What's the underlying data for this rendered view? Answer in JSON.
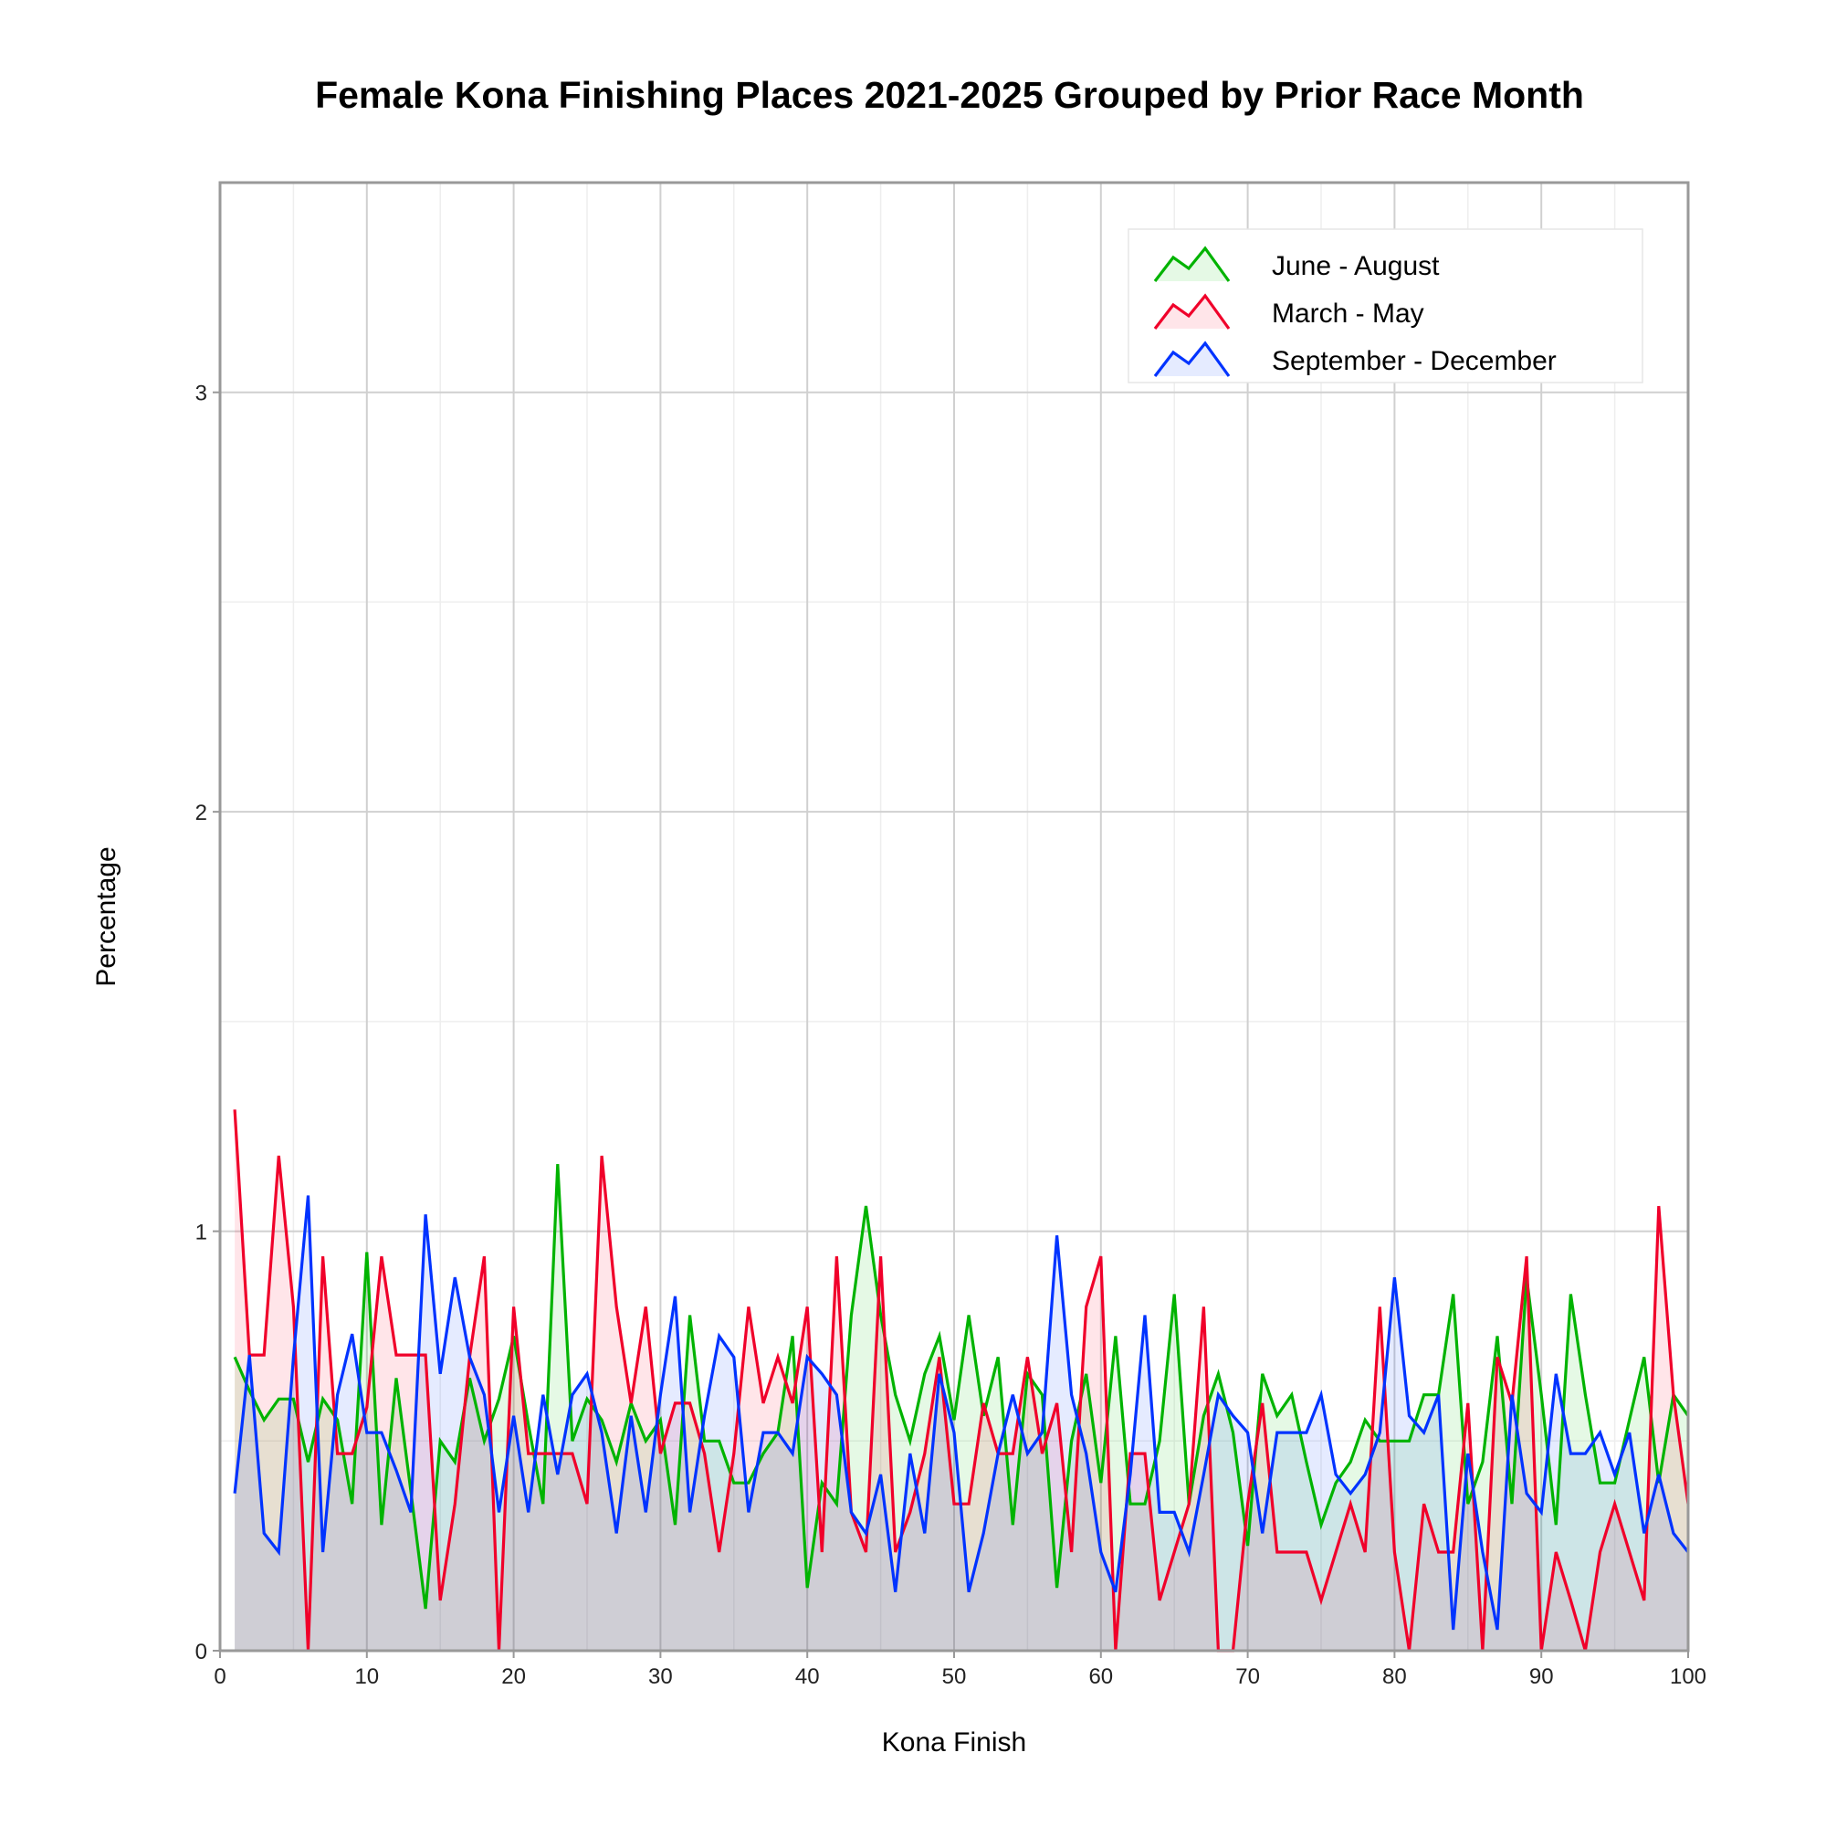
{
  "chart_data": {
    "type": "area",
    "title": "Female Kona Finishing Places 2021-2025 Grouped by Prior Race Month",
    "xlabel": "Kona Finish",
    "ylabel": "Percentage",
    "xlim": [
      0,
      100
    ],
    "ylim": [
      0,
      3.5
    ],
    "xticks": [
      0,
      10,
      20,
      30,
      40,
      50,
      60,
      70,
      80,
      90,
      100
    ],
    "yticks": [
      0,
      1,
      2,
      3
    ],
    "grid": true,
    "legend_position": "top-right",
    "x_start": 1,
    "series": [
      {
        "name": "June - August",
        "color": "#00b300",
        "fill": "rgba(0,200,0,0.10)",
        "values": [
          0.7,
          0.62,
          0.55,
          0.6,
          0.6,
          0.45,
          0.6,
          0.55,
          0.35,
          0.95,
          0.3,
          0.65,
          0.38,
          0.1,
          0.5,
          0.45,
          0.65,
          0.5,
          0.6,
          0.75,
          0.54,
          0.35,
          1.16,
          0.5,
          0.6,
          0.55,
          0.45,
          0.59,
          0.5,
          0.55,
          0.3,
          0.8,
          0.5,
          0.5,
          0.4,
          0.4,
          0.47,
          0.52,
          0.75,
          0.15,
          0.4,
          0.35,
          0.8,
          1.06,
          0.8,
          0.61,
          0.5,
          0.66,
          0.75,
          0.55,
          0.8,
          0.56,
          0.7,
          0.3,
          0.66,
          0.61,
          0.15,
          0.5,
          0.66,
          0.4,
          0.75,
          0.35,
          0.35,
          0.5,
          0.85,
          0.35,
          0.56,
          0.66,
          0.52,
          0.25,
          0.66,
          0.56,
          0.61,
          0.45,
          0.3,
          0.4,
          0.45,
          0.55,
          0.5,
          0.5,
          0.5,
          0.61,
          0.61,
          0.85,
          0.35,
          0.45,
          0.75,
          0.35,
          0.89,
          0.61,
          0.3,
          0.85,
          0.61,
          0.4,
          0.4,
          0.55,
          0.7,
          0.4,
          0.61,
          0.56
        ]
      },
      {
        "name": "March - May",
        "color": "#f0002a",
        "fill": "rgba(255,0,40,0.10)",
        "values": [
          1.29,
          0.705,
          0.705,
          1.18,
          0.82,
          0,
          0.94,
          0.47,
          0.47,
          0.58,
          0.94,
          0.705,
          0.705,
          0.705,
          0.12,
          0.35,
          0.7,
          0.94,
          0,
          0.82,
          0.47,
          0.47,
          0.47,
          0.47,
          0.35,
          1.18,
          0.82,
          0.59,
          0.82,
          0.47,
          0.59,
          0.59,
          0.47,
          0.235,
          0.47,
          0.82,
          0.59,
          0.7,
          0.59,
          0.82,
          0.235,
          0.94,
          0.33,
          0.235,
          0.94,
          0.235,
          0.33,
          0.47,
          0.7,
          0.35,
          0.35,
          0.59,
          0.47,
          0.47,
          0.7,
          0.47,
          0.59,
          0.235,
          0.82,
          0.94,
          0,
          0.47,
          0.47,
          0.12,
          0.235,
          0.35,
          0.82,
          0,
          0,
          0.35,
          0.59,
          0.235,
          0.235,
          0.235,
          0.12,
          0.235,
          0.35,
          0.235,
          0.82,
          0.235,
          0,
          0.35,
          0.235,
          0.235,
          0.59,
          0,
          0.7,
          0.59,
          0.94,
          0,
          0.235,
          0.12,
          0,
          0.235,
          0.35,
          0.235,
          0.12,
          1.06,
          0.61,
          0.35
        ]
      },
      {
        "name": "September - December",
        "color": "#0033ff",
        "fill": "rgba(0,60,255,0.10)",
        "values": [
          0.375,
          0.705,
          0.28,
          0.235,
          0.7,
          1.085,
          0.235,
          0.61,
          0.755,
          0.52,
          0.52,
          0.43,
          0.33,
          1.04,
          0.66,
          0.89,
          0.7,
          0.61,
          0.33,
          0.56,
          0.33,
          0.61,
          0.42,
          0.61,
          0.66,
          0.52,
          0.28,
          0.56,
          0.33,
          0.61,
          0.845,
          0.33,
          0.56,
          0.75,
          0.7,
          0.33,
          0.52,
          0.52,
          0.47,
          0.7,
          0.66,
          0.61,
          0.33,
          0.28,
          0.42,
          0.14,
          0.47,
          0.28,
          0.66,
          0.52,
          0.14,
          0.28,
          0.47,
          0.61,
          0.47,
          0.52,
          0.99,
          0.61,
          0.47,
          0.235,
          0.14,
          0.42,
          0.8,
          0.33,
          0.33,
          0.235,
          0.42,
          0.61,
          0.56,
          0.52,
          0.28,
          0.52,
          0.52,
          0.52,
          0.61,
          0.42,
          0.375,
          0.42,
          0.52,
          0.89,
          0.56,
          0.52,
          0.61,
          0.05,
          0.47,
          0.235,
          0.05,
          0.61,
          0.375,
          0.33,
          0.66,
          0.47,
          0.47,
          0.52,
          0.42,
          0.52,
          0.28,
          0.42,
          0.28,
          0.235
        ]
      }
    ]
  }
}
